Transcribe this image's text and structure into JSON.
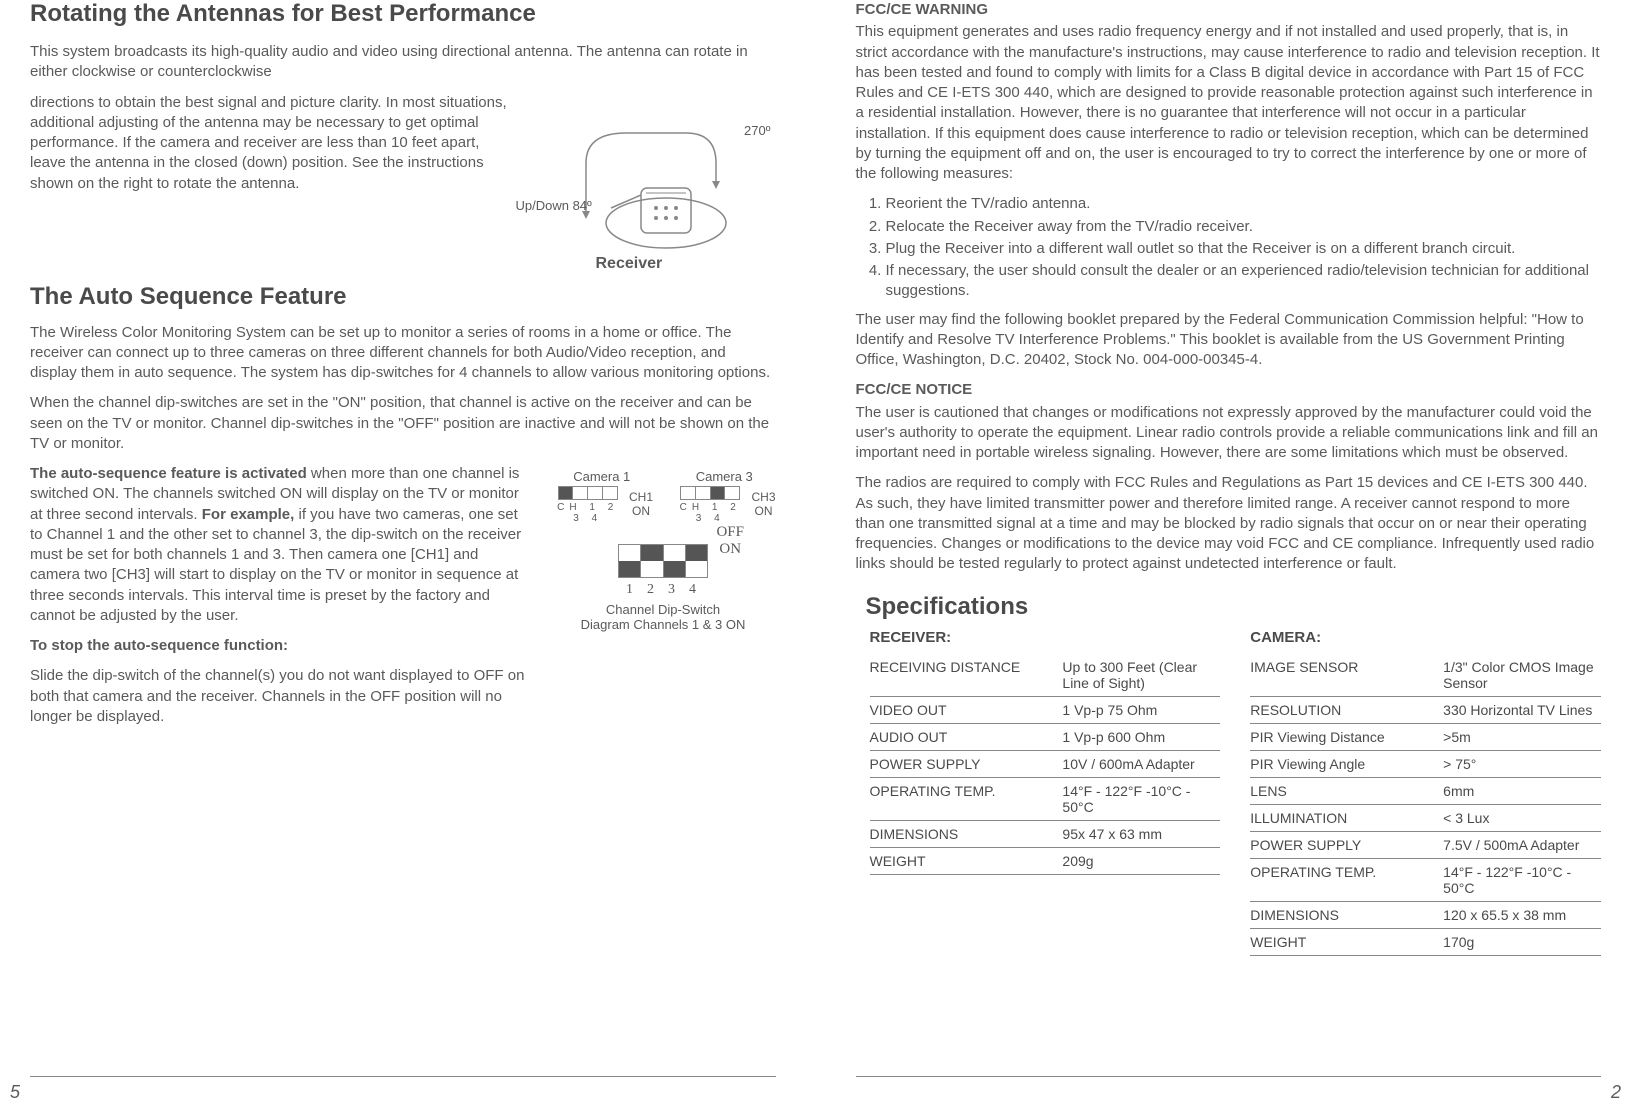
{
  "left": {
    "title1": "Rotating the Antennas for Best Performance",
    "intro": "This system broadcasts its high-quality audio and video using directional antenna. The antenna can rotate in either clockwise or counterclockwise",
    "antenna_text": "directions to obtain the best signal and picture clarity. In most situations, additional adjusting of the antenna may be necessary to get optimal performance. If the camera and receiver are less than 10 feet apart, leave the antenna in the closed (down) position. See the instructions shown on the right to rotate the antenna.",
    "antenna_270": "270º",
    "antenna_updown": "Up/Down 84º",
    "receiver_label": "Receiver",
    "title2": "The Auto Sequence Feature",
    "para2a": "The Wireless Color Monitoring System can be set up to monitor a series of rooms in a home or office. The receiver can connect up to three cameras on three different channels for both Audio/Video reception, and display them in auto sequence. The system has dip-switches for 4 channels to allow various monitoring options.",
    "para2b": "When the channel dip-switches are set in the \"ON\" position, that channel is active on the receiver and can be seen on the TV or monitor. Channel dip-switches in the \"OFF\" position are inactive and will not be shown on the TV or monitor.",
    "para2c_lead": "The auto-sequence feature is activated",
    "para2c_rest": " when more than one channel is switched ON. The channels switched ON will display on the TV or monitor at three second intervals. ",
    "para2c_eg": "For example,",
    "para2c_rest2": " if you have two cameras, one set to Channel 1 and the other set to channel 3, the dip-switch on the receiver must be set for both channels 1 and 3. Then camera one [CH1] and camera two [CH3] will start to display on the TV or monitor in sequence at three seconds intervals. This interval time is preset by the factory and cannot be adjusted by the user.",
    "stop_heading": "To stop the auto-sequence function:",
    "stop_text": "Slide the dip-switch of the channel(s) you do not want displayed to OFF on both that camera and the receiver. Channels in the OFF position will no longer be displayed.",
    "cam1": "Camera 1",
    "cam3": "Camera 3",
    "ch1": "CH1",
    "ch3": "CH3",
    "ch_prefix": "CH",
    "on": "ON",
    "off": "OFF",
    "dip_caption1": "Channel Dip-Switch",
    "dip_caption2": "Diagram Channels 1 & 3 ON",
    "page_num": "5"
  },
  "right": {
    "fcc_warning_title": "FCC/CE WARNING",
    "fcc_warning_body": "This equipment generates and uses radio frequency energy and if not installed and used properly, that is, in strict accordance with the manufacture's instructions, may cause interference to radio and television reception. It has been tested and found to comply with limits for a Class B digital device in accordance with Part 15 of FCC Rules and CE I-ETS 300 440, which are designed to provide reasonable protection against such interference in a residential installation. However, there is no guarantee that interference will not occur in a particular installation. If this equipment does cause interference to radio or television reception, which can be determined by turning the equipment off and on, the user is encouraged to try to correct the interference by one or more of the following measures:",
    "measures": [
      "Reorient the TV/radio antenna.",
      "Relocate the Receiver away from the TV/radio receiver.",
      "Plug the Receiver into a different wall outlet so that the Receiver is on a different branch circuit.",
      "If necessary, the user should consult the dealer or an experienced radio/television technician for additional suggestions."
    ],
    "fcc_booklet": "The user may find the following booklet prepared by the Federal Communication Commission helpful: \"How to Identify and Resolve TV Interference Problems.\" This booklet is available from the US Government Printing Office, Washington, D.C. 20402, Stock No. 004-000-00345-4.",
    "fcc_notice_title": "FCC/CE NOTICE",
    "fcc_notice_body1": "The user is cautioned that changes or modifications not expressly approved by the manufacturer could void the user's authority to operate the equipment. Linear radio controls provide a reliable communications link and fill an important need in portable wireless signaling. However, there are some limitations which must be observed.",
    "fcc_notice_body2": "The radios are required to comply with FCC Rules and Regulations as Part 15 devices and CE I-ETS 300 440. As such, they have limited transmitter power and therefore limited range. A receiver cannot respond to more than one transmitted signal at a time and may be blocked by radio signals that occur on or near their operating frequencies. Changes or modifications to the device may void FCC and CE compliance. Infrequently used radio links should be tested regularly to protect against undetected interference or fault.",
    "spec_heading": "Specifications",
    "receiver_label": "RECEIVER:",
    "camera_label": "CAMERA:",
    "receiver_specs": [
      {
        "label": "RECEIVING DISTANCE",
        "value": "Up to 300 Feet (Clear Line of Sight)"
      },
      {
        "label": "VIDEO OUT",
        "value": "1 Vp-p 75 Ohm"
      },
      {
        "label": "AUDIO OUT",
        "value": "1 Vp-p 600 Ohm"
      },
      {
        "label": "POWER SUPPLY",
        "value": "10V / 600mA Adapter"
      },
      {
        "label": "OPERATING TEMP.",
        "value": "14°F - 122°F -10°C - 50°C"
      },
      {
        "label": "DIMENSIONS",
        "value": "95x 47 x 63 mm"
      },
      {
        "label": "WEIGHT",
        "value": "209g"
      }
    ],
    "camera_specs": [
      {
        "label": "IMAGE SENSOR",
        "value": "1/3\" Color CMOS Image Sensor"
      },
      {
        "label": "RESOLUTION",
        "value": "330 Horizontal TV Lines"
      },
      {
        "label": "PIR Viewing Distance",
        "value": ">5m"
      },
      {
        "label": "PIR Viewing Angle",
        "value": "> 75°"
      },
      {
        "label": "LENS",
        "value": "6mm"
      },
      {
        "label": "ILLUMINATION",
        "value": "< 3 Lux"
      },
      {
        "label": "POWER SUPPLY",
        "value": "7.5V / 500mA Adapter"
      },
      {
        "label": "OPERATING TEMP.",
        "value": "14°F - 122°F -10°C - 50°C"
      },
      {
        "label": "DIMENSIONS",
        "value": "120 x 65.5 x 38 mm"
      },
      {
        "label": "WEIGHT",
        "value": "170g"
      }
    ],
    "page_num": "2"
  },
  "style": {
    "text_color": "#5a5a5a",
    "heading_color": "#4a4a4a",
    "rule_color": "#888888",
    "background": "#ffffff",
    "body_fontsize": 15,
    "heading_fontsize": 24
  }
}
